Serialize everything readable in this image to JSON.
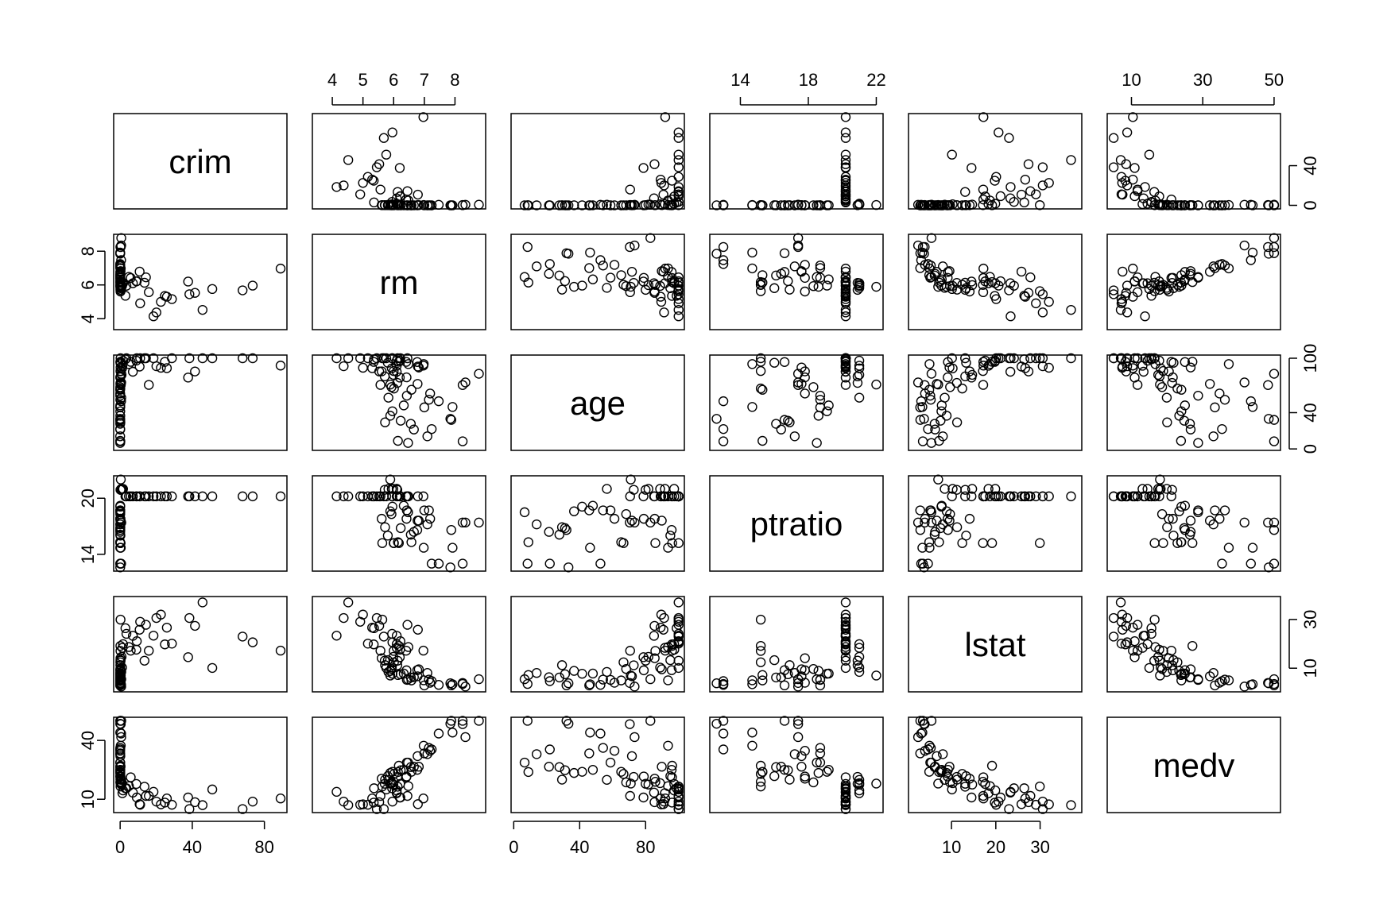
{
  "chart_data": {
    "type": "scatter_matrix",
    "variables": [
      {
        "name": "crim",
        "lim": [
          -3.6,
          92.5
        ],
        "xticks": [
          0,
          40,
          80
        ],
        "yticks": [
          0,
          40
        ],
        "values": [
          0.006,
          0.027,
          0.027,
          0.032,
          0.069,
          0.03,
          0.088,
          0.145,
          0.211,
          0.17,
          0.627,
          1.05,
          0.784,
          1.25,
          1.61,
          0.084,
          0.122,
          0.013,
          0.032,
          0.036,
          0.013,
          0.041,
          0.126,
          0.54,
          0.329,
          0.575,
          0.331,
          0.017,
          0.619,
          0.04,
          0.223,
          0.11,
          0.064,
          0.191,
          0.058,
          4.87,
          5.87,
          8.98,
          9.23,
          10.8,
          11.1,
          13.5,
          15.9,
          18.5,
          20.1,
          22.6,
          24.8,
          25.9,
          28.7,
          37.7,
          38.4,
          41.5,
          45.7,
          51.1,
          67.9,
          73.5,
          88.98,
          14.3,
          7.05,
          3.47,
          2.92,
          0.255,
          0.178,
          0.35,
          0.066,
          0.045,
          0.038,
          0.016,
          0.1,
          0.14
        ]
      },
      {
        "name": "rm",
        "lim": [
          3.35,
          9.0
        ],
        "xticks": [
          4,
          5,
          6,
          7,
          8
        ],
        "yticks": [
          4,
          6,
          8
        ],
        "values": [
          6.58,
          6.42,
          7.19,
          7.0,
          7.15,
          6.43,
          6.01,
          6.17,
          5.63,
          6.0,
          5.83,
          5.94,
          5.99,
          6.1,
          6.1,
          5.89,
          5.72,
          7.1,
          6.23,
          6.47,
          7.24,
          7.92,
          8.25,
          7.47,
          6.98,
          8.34,
          8.25,
          7.88,
          8.78,
          7.85,
          6.82,
          6.78,
          5.93,
          5.61,
          5.96,
          6.48,
          6.41,
          6.21,
          6.22,
          6.79,
          4.91,
          6.13,
          5.57,
          4.14,
          4.37,
          5.0,
          5.35,
          5.3,
          5.16,
          6.2,
          5.45,
          5.53,
          4.52,
          5.76,
          5.68,
          5.96,
          6.97,
          6.45,
          6.1,
          5.95,
          5.36,
          5.71,
          6.12,
          5.89,
          6.33,
          6.66,
          6.56,
          6.14,
          6.77,
          5.81
        ]
      },
      {
        "name": "age",
        "lim": [
          -1.6,
          103.5
        ],
        "xticks": [
          0,
          40,
          80
        ],
        "yticks": [
          0,
          40,
          100
        ],
        "values": [
          65.2,
          78.9,
          61.1,
          45.8,
          54.2,
          58.7,
          66.6,
          96.1,
          100,
          85.9,
          56.5,
          88.8,
          81.7,
          91.7,
          97.3,
          36.6,
          29.3,
          13.9,
          31.1,
          6.6,
          21.9,
          46.3,
          8.4,
          52.6,
          93.6,
          73.3,
          70.4,
          32.0,
          82.9,
          33.2,
          89.8,
          71.7,
          68.2,
          85.5,
          41.5,
          93.6,
          96.0,
          97.4,
          100,
          90.8,
          100,
          100,
          70.6,
          100,
          91.2,
          89.5,
          96.0,
          89.1,
          100,
          78.7,
          100,
          85.4,
          100,
          100,
          100,
          100,
          91.9,
          100,
          85.1,
          100,
          98.8,
          80.0,
          72.8,
          71.0,
          48.0,
          21.4,
          27.7,
          8.9,
          95.8,
          95.0
        ]
      },
      {
        "name": "ptratio",
        "lim": [
          12.2,
          22.4
        ],
        "xticks": [
          14,
          18,
          22
        ],
        "yticks": [
          14,
          20
        ],
        "values": [
          15.3,
          17.8,
          17.8,
          18.7,
          18.7,
          18.7,
          15.2,
          15.2,
          15.2,
          15.2,
          21.0,
          21.0,
          21.0,
          21.0,
          21.0,
          18.6,
          16.9,
          17.2,
          16.8,
          18.5,
          13.0,
          14.7,
          13.0,
          13.0,
          14.7,
          17.4,
          17.4,
          16.6,
          17.4,
          12.6,
          17.6,
          17.6,
          18.3,
          17.8,
          19.1,
          20.2,
          20.2,
          20.2,
          20.2,
          20.2,
          20.2,
          20.2,
          20.2,
          20.2,
          20.2,
          20.2,
          20.2,
          20.2,
          20.2,
          20.2,
          20.2,
          20.2,
          20.2,
          20.2,
          20.2,
          20.2,
          20.2,
          20.2,
          20.2,
          20.2,
          20.2,
          20.9,
          20.9,
          22.0,
          19.2,
          16.4,
          16.1,
          15.3,
          16.6,
          16.0
        ]
      },
      {
        "name": "lstat",
        "lim": [
          0.3,
          39.4
        ],
        "xticks": [
          10,
          20,
          30
        ],
        "yticks": [
          10,
          30
        ],
        "values": [
          4.98,
          9.14,
          4.03,
          2.94,
          5.33,
          5.21,
          12.43,
          19.15,
          29.93,
          17.1,
          8.47,
          10.26,
          14.67,
          18.35,
          19.88,
          8.91,
          11.26,
          8.05,
          7.53,
          5.47,
          4.7,
          3.43,
          3.54,
          3.16,
          5.04,
          2.47,
          3.95,
          2.97,
          5.49,
          3.81,
          9.55,
          6.68,
          9.68,
          14.1,
          7.73,
          18.68,
          17.19,
          17.6,
          21.08,
          25.79,
          29.05,
          13.08,
          17.16,
          23.34,
          30.59,
          31.99,
          19.77,
          26.64,
          20.08,
          14.52,
          30.59,
          27.38,
          36.98,
          10.11,
          22.98,
          20.62,
          17.21,
          27.8,
          23.29,
          24.1,
          26.42,
          13.1,
          11.2,
          7.0,
          7.8,
          6.3,
          6.2,
          7.2,
          9.2,
          13.3
        ]
      },
      {
        "name": "medv",
        "lim": [
          3.2,
          51.8
        ],
        "xticks": [
          10,
          30,
          50
        ],
        "yticks": [
          10,
          40
        ],
        "values": [
          24.0,
          21.6,
          34.7,
          33.4,
          36.2,
          28.7,
          22.9,
          27.1,
          16.5,
          18.9,
          19.9,
          18.2,
          17.5,
          13.1,
          14.5,
          23.4,
          20.0,
          33.0,
          24.8,
          28.7,
          35.4,
          44.0,
          50.0,
          43.5,
          37.3,
          41.7,
          48.3,
          50.0,
          50.0,
          48.5,
          26.6,
          32.0,
          18.6,
          20.5,
          24.0,
          16.7,
          21.2,
          17.8,
          10.9,
          7.5,
          7.2,
          16.4,
          11.7,
          13.8,
          8.8,
          7.4,
          8.3,
          10.4,
          7.2,
          10.9,
          5.0,
          8.5,
          7.0,
          15.0,
          5.0,
          8.8,
          10.4,
          11.7,
          13.4,
          15.6,
          15.6,
          17.9,
          21.4,
          18.0,
          25.0,
          26.6,
          26.4,
          23.9,
          25.0,
          21.8
        ]
      }
    ]
  }
}
